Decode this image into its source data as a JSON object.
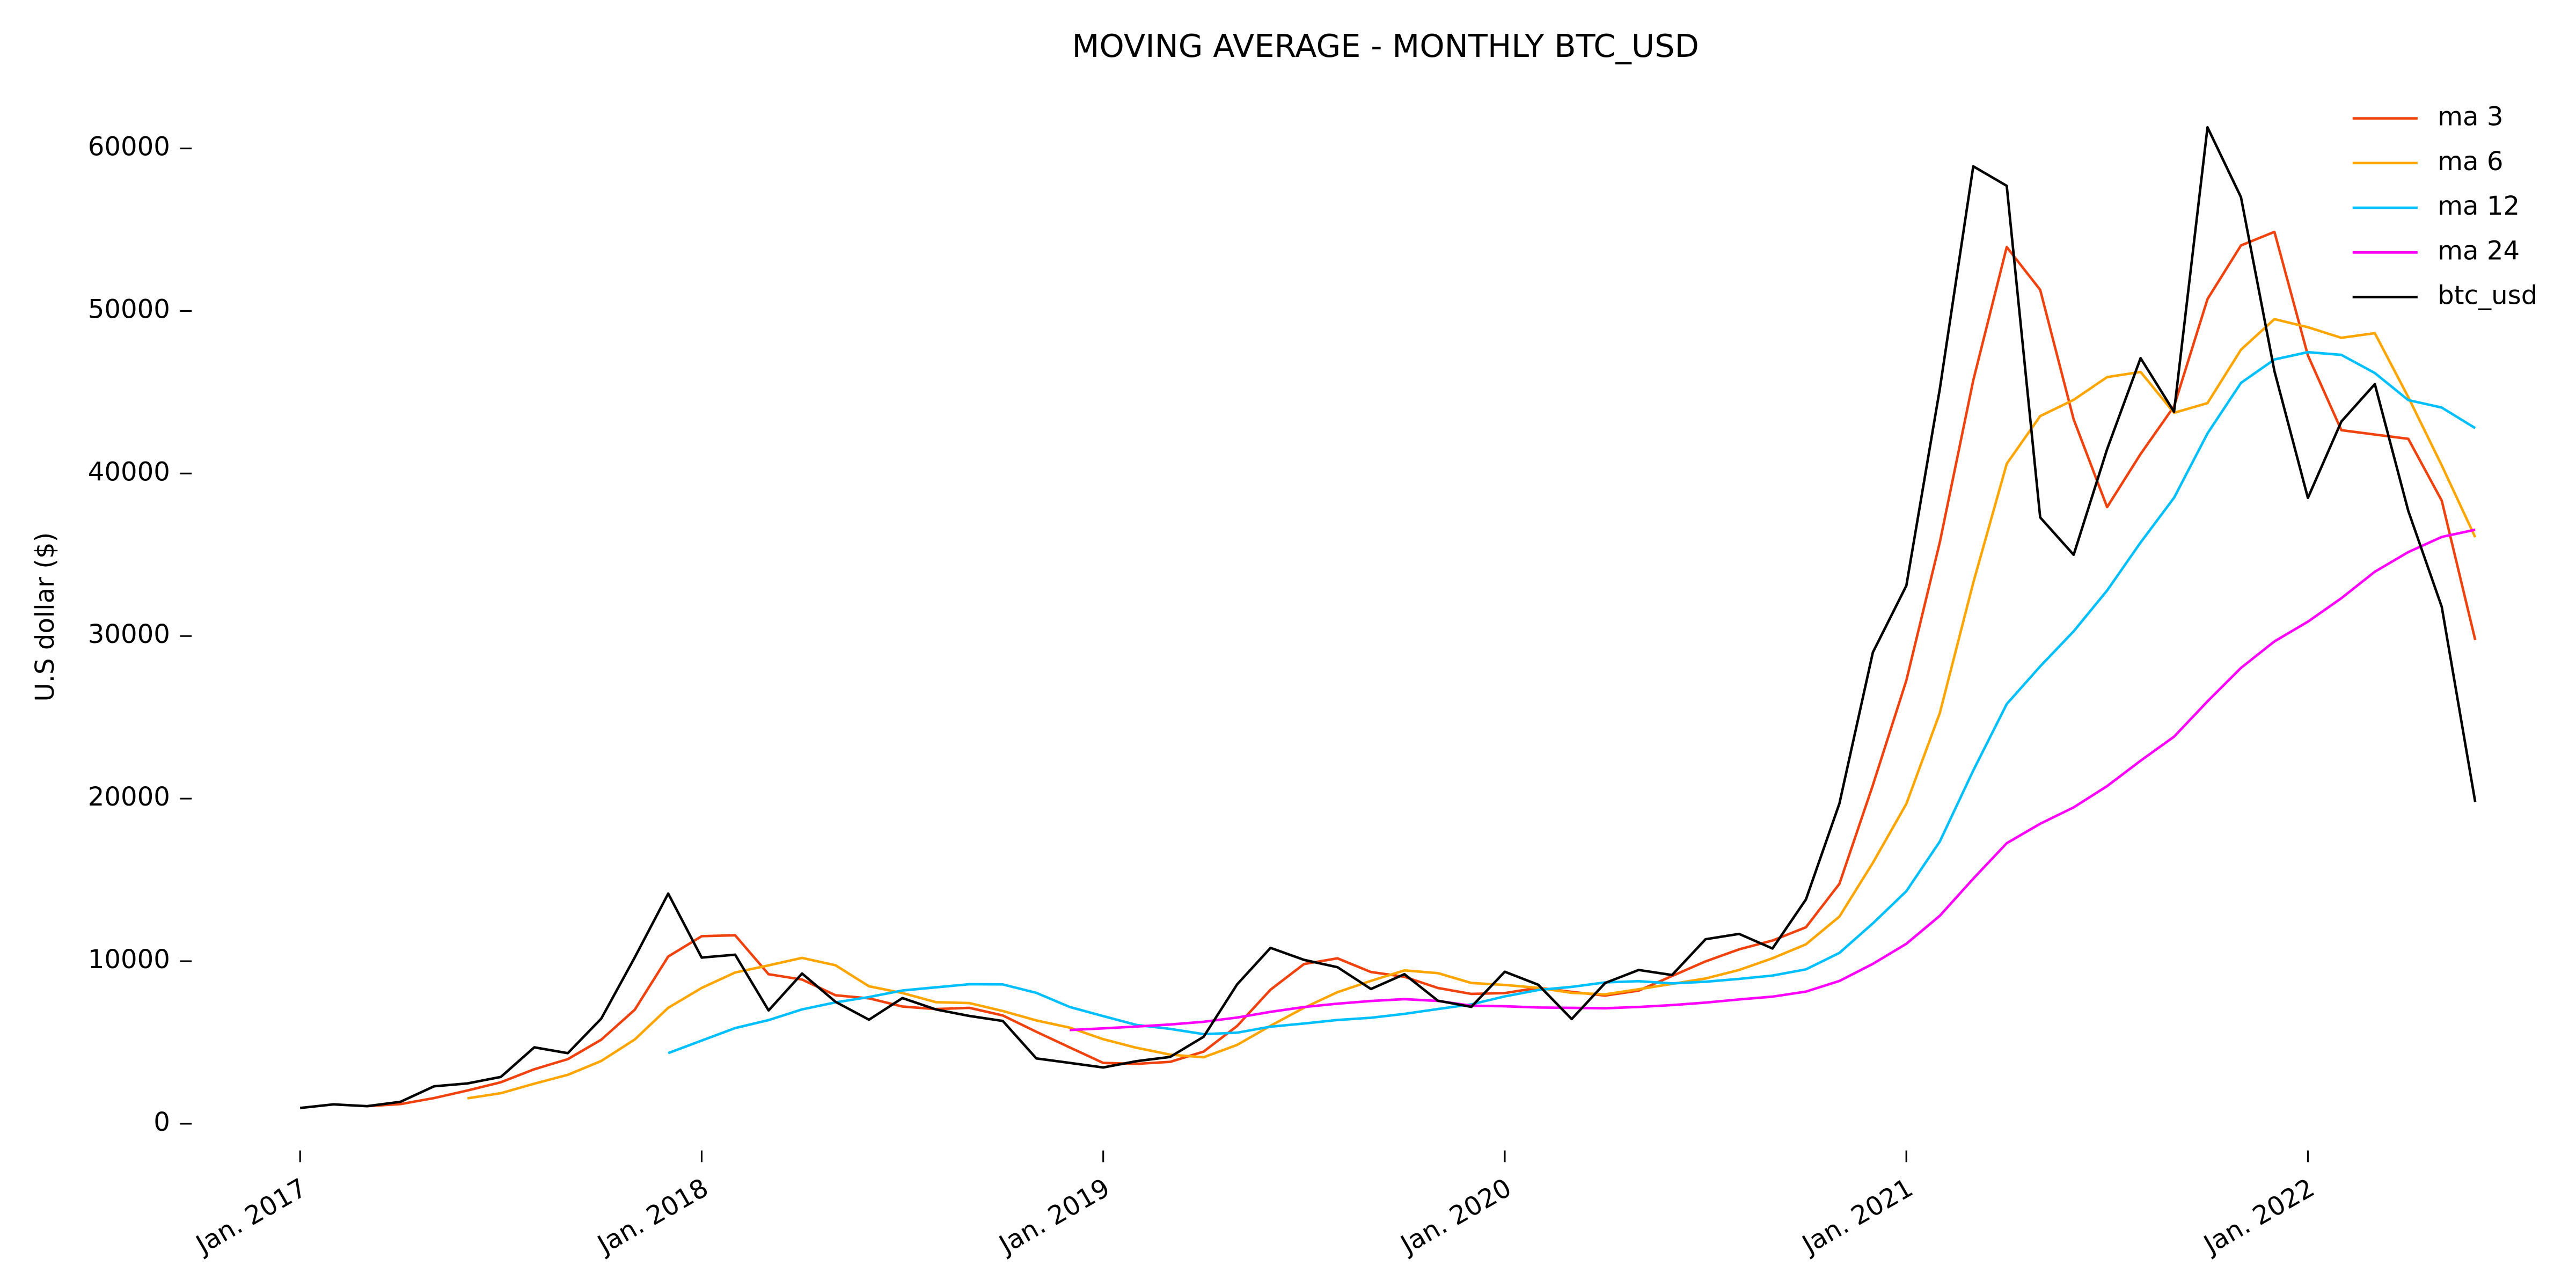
{
  "chart_data": {
    "type": "line",
    "title": "MOVING AVERAGE - MONTHLY BTC_USD",
    "y_label": "U.S dollar ($)",
    "x": [
      "2017-01",
      "2017-02",
      "2017-03",
      "2017-04",
      "2017-05",
      "2017-06",
      "2017-07",
      "2017-08",
      "2017-09",
      "2017-10",
      "2017-11",
      "2017-12",
      "2018-01",
      "2018-02",
      "2018-03",
      "2018-04",
      "2018-05",
      "2018-06",
      "2018-07",
      "2018-08",
      "2018-09",
      "2018-10",
      "2018-11",
      "2018-12",
      "2019-01",
      "2019-02",
      "2019-03",
      "2019-04",
      "2019-05",
      "2019-06",
      "2019-07",
      "2019-08",
      "2019-09",
      "2019-10",
      "2019-11",
      "2019-12",
      "2020-01",
      "2020-02",
      "2020-03",
      "2020-04",
      "2020-05",
      "2020-06",
      "2020-07",
      "2020-08",
      "2020-09",
      "2020-10",
      "2020-11",
      "2020-12",
      "2021-01",
      "2021-02",
      "2021-03",
      "2021-04",
      "2021-05",
      "2021-06",
      "2021-07",
      "2021-08",
      "2021-09",
      "2021-10",
      "2021-11",
      "2021-12",
      "2022-01",
      "2022-02",
      "2022-03",
      "2022-04",
      "2022-05",
      "2022-06"
    ],
    "xticks": [
      {
        "value": "2017-01",
        "label": "Jan. 2017"
      },
      {
        "value": "2018-01",
        "label": "Jan. 2018"
      },
      {
        "value": "2019-01",
        "label": "Jan. 2019"
      },
      {
        "value": "2020-01",
        "label": "Jan. 2020"
      },
      {
        "value": "2021-01",
        "label": "Jan. 2021"
      },
      {
        "value": "2022-01",
        "label": "Jan. 2022"
      }
    ],
    "ylim": [
      -1500,
      63500
    ],
    "yticks": [
      0,
      10000,
      20000,
      30000,
      40000,
      50000,
      60000
    ],
    "legend": "upper right",
    "grid": false,
    "series": [
      {
        "name": "ma 3",
        "color": "#f0420e",
        "values": [
          null,
          null,
          1080,
          1207,
          1577,
          2043,
          2553,
          3353,
          3973,
          5170,
          7013,
          10287,
          11537,
          11593,
          9197,
          8870,
          7903,
          7713,
          7210,
          7053,
          7130,
          6660,
          5657,
          4693,
          3740,
          3683,
          3807,
          4437,
          6010,
          8247,
          9823,
          10177,
          9333,
          9040,
          8353,
          7987,
          8037,
          8363,
          8113,
          7883,
          8187,
          9090,
          9987,
          10727,
          11270,
          12087,
          14760,
          20833,
          27267,
          35767,
          45733,
          53933,
          51300,
          43333,
          37933,
          41200,
          44133,
          50733,
          54033,
          54867,
          47267,
          42667,
          42400,
          42133,
          38333,
          29767
        ]
      },
      {
        "name": "ma 6",
        "color": "#ffa500",
        "values": [
          null,
          null,
          null,
          null,
          null,
          1562,
          1880,
          2465,
          3008,
          3862,
          5183,
          7130,
          8353,
          9303,
          9742,
          10203,
          9748,
          8455,
          8040,
          7478,
          7422,
          6935,
          6355,
          5912,
          5200,
          4670,
          4250,
          4088,
          4847,
          6027,
          7130,
          8093,
          8790,
          9432,
          9265,
          8660,
          8538,
          8358,
          8050,
          7960,
          8275,
          8602,
          8935,
          9457,
          10180,
          11037,
          12743,
          16052,
          19677,
          25263,
          33283,
          40600,
          43533,
          44533,
          45933,
          46250,
          43733,
          44333,
          47617,
          49500,
          49000,
          48350,
          48633,
          44700,
          40500,
          36083
        ]
      },
      {
        "name": "ma 12",
        "color": "#00bfff",
        "values": [
          null,
          null,
          null,
          null,
          null,
          null,
          null,
          null,
          null,
          null,
          null,
          4346,
          5117,
          5884,
          6375,
          7033,
          7466,
          7793,
          8197,
          8391,
          8582,
          8569,
          8052,
          7183,
          6620,
          6074,
          5836,
          5512,
          5601,
          5969,
          6165,
          6382,
          6520,
          6760,
          7056,
          7343,
          7834,
          8226,
          8420,
          8696,
          8770,
          8631,
          8737,
          8908,
          9115,
          9498,
          10509,
          12327,
          14306,
          17360,
          21732,
          25818,
          28138,
          30293,
          32805,
          35757,
          38508,
          42467,
          45575,
          47017,
          47467,
          47300,
          46183,
          44517,
          44058,
          42792
        ]
      },
      {
        "name": "ma 24",
        "color": "#ff00ff",
        "values": [
          null,
          null,
          null,
          null,
          null,
          null,
          null,
          null,
          null,
          null,
          null,
          null,
          null,
          null,
          null,
          null,
          null,
          null,
          null,
          null,
          null,
          null,
          null,
          5765,
          5868,
          5979,
          6105,
          6272,
          6533,
          6881,
          7181,
          7386,
          7551,
          7665,
          7554,
          7263,
          7227,
          7150,
          7128,
          7104,
          7185,
          7300,
          7451,
          7645,
          7818,
          8129,
          8783,
          9835,
          11070,
          12793,
          15076,
          17257,
          18454,
          19462,
          20771,
          22332,
          23812,
          25983,
          28042,
          29672,
          30886,
          32330,
          33958,
          35168,
          36099,
          36543
        ]
      },
      {
        "name": "btc_usd",
        "color": "#000000",
        "values": [
          970,
          1190,
          1080,
          1350,
          2300,
          2480,
          2880,
          4700,
          4340,
          6470,
          10230,
          14160,
          10220,
          10400,
          6970,
          9240,
          7500,
          6400,
          7730,
          7030,
          6630,
          6320,
          4020,
          3740,
          3460,
          3850,
          4110,
          5350,
          8570,
          10820,
          10080,
          9630,
          8290,
          9200,
          7570,
          7190,
          9350,
          8550,
          6440,
          8660,
          9460,
          9150,
          11350,
          11680,
          10780,
          13800,
          19700,
          29000,
          33100,
          45200,
          58900,
          57700,
          37300,
          35000,
          41500,
          47100,
          43800,
          61300,
          57000,
          46300,
          38500,
          43200,
          45500,
          37700,
          31800,
          19800
        ]
      }
    ]
  }
}
